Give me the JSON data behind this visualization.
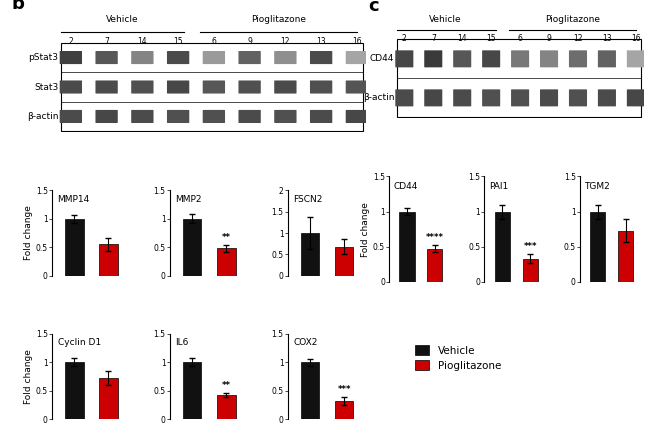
{
  "panel_b": {
    "label": "b",
    "wb_labels_top": [
      "Vehicle",
      "Pioglitazone"
    ],
    "wb_sample_nums": [
      "2",
      "7",
      "14",
      "15",
      "6",
      "9",
      "12",
      "13",
      "16"
    ],
    "wb_row_labels": [
      "pStat3",
      "Stat3",
      "β-actin"
    ],
    "wb_band_patterns": [
      [
        0.85,
        0.75,
        0.55,
        0.8,
        0.45,
        0.7,
        0.5,
        0.8,
        0.4
      ],
      [
        0.8,
        0.8,
        0.78,
        0.82,
        0.75,
        0.78,
        0.8,
        0.78,
        0.76
      ],
      [
        0.8,
        0.82,
        0.8,
        0.78,
        0.78,
        0.8,
        0.78,
        0.8,
        0.82
      ]
    ],
    "bar_groups": [
      {
        "title": "MMP14",
        "vm": 1.0,
        "ve": 0.07,
        "pm": 0.55,
        "pe": 0.12,
        "sig": "",
        "ylim": [
          0,
          1.5
        ],
        "yticks": [
          0,
          0.5,
          1.0,
          1.5
        ]
      },
      {
        "title": "MMP2",
        "vm": 1.0,
        "ve": 0.08,
        "pm": 0.48,
        "pe": 0.06,
        "sig": "**",
        "ylim": [
          0,
          1.5
        ],
        "yticks": [
          0,
          0.5,
          1.0,
          1.5
        ]
      },
      {
        "title": "FSCN2",
        "vm": 1.0,
        "ve": 0.38,
        "pm": 0.68,
        "pe": 0.18,
        "sig": "",
        "ylim": [
          0,
          2.0
        ],
        "yticks": [
          0,
          0.5,
          1.0,
          1.5,
          2.0
        ]
      },
      {
        "title": "Cyclin D1",
        "vm": 1.0,
        "ve": 0.07,
        "pm": 0.72,
        "pe": 0.12,
        "sig": "",
        "ylim": [
          0,
          1.5
        ],
        "yticks": [
          0,
          0.5,
          1.0,
          1.5
        ]
      },
      {
        "title": "IL6",
        "vm": 1.0,
        "ve": 0.07,
        "pm": 0.42,
        "pe": 0.04,
        "sig": "**",
        "ylim": [
          0,
          1.5
        ],
        "yticks": [
          0,
          0.5,
          1.0,
          1.5
        ]
      },
      {
        "title": "COX2",
        "vm": 1.0,
        "ve": 0.06,
        "pm": 0.32,
        "pe": 0.07,
        "sig": "***",
        "ylim": [
          0,
          1.5
        ],
        "yticks": [
          0,
          0.5,
          1.0,
          1.5
        ]
      }
    ]
  },
  "panel_c": {
    "label": "c",
    "wb_labels_top": [
      "Vehicle",
      "Pioglitazone"
    ],
    "wb_sample_nums": [
      "2",
      "7",
      "14",
      "15",
      "6",
      "9",
      "12",
      "13",
      "16"
    ],
    "wb_row_labels": [
      "CD44",
      "β-actin"
    ],
    "wb_band_patterns": [
      [
        0.82,
        0.88,
        0.75,
        0.82,
        0.6,
        0.55,
        0.65,
        0.7,
        0.4
      ],
      [
        0.8,
        0.82,
        0.8,
        0.78,
        0.78,
        0.8,
        0.78,
        0.8,
        0.82
      ]
    ],
    "bar_groups": [
      {
        "title": "CD44",
        "vm": 1.0,
        "ve": 0.05,
        "pm": 0.47,
        "pe": 0.05,
        "sig": "****",
        "ylim": [
          0,
          1.5
        ],
        "yticks": [
          0,
          0.5,
          1.0,
          1.5
        ]
      },
      {
        "title": "PAI1",
        "vm": 1.0,
        "ve": 0.1,
        "pm": 0.33,
        "pe": 0.06,
        "sig": "***",
        "ylim": [
          0,
          1.5
        ],
        "yticks": [
          0,
          0.5,
          1.0,
          1.5
        ]
      },
      {
        "title": "TGM2",
        "vm": 1.0,
        "ve": 0.1,
        "pm": 0.73,
        "pe": 0.16,
        "sig": "",
        "ylim": [
          0,
          1.5
        ],
        "yticks": [
          0,
          0.5,
          1.0,
          1.5
        ]
      }
    ]
  },
  "colors": {
    "vehicle": "#111111",
    "pioglitazone": "#cc0000",
    "background": "#ffffff"
  },
  "ylabel": "Fold change",
  "legend": {
    "vehicle": "Vehicle",
    "pioglitazone": "Pioglitazone"
  }
}
